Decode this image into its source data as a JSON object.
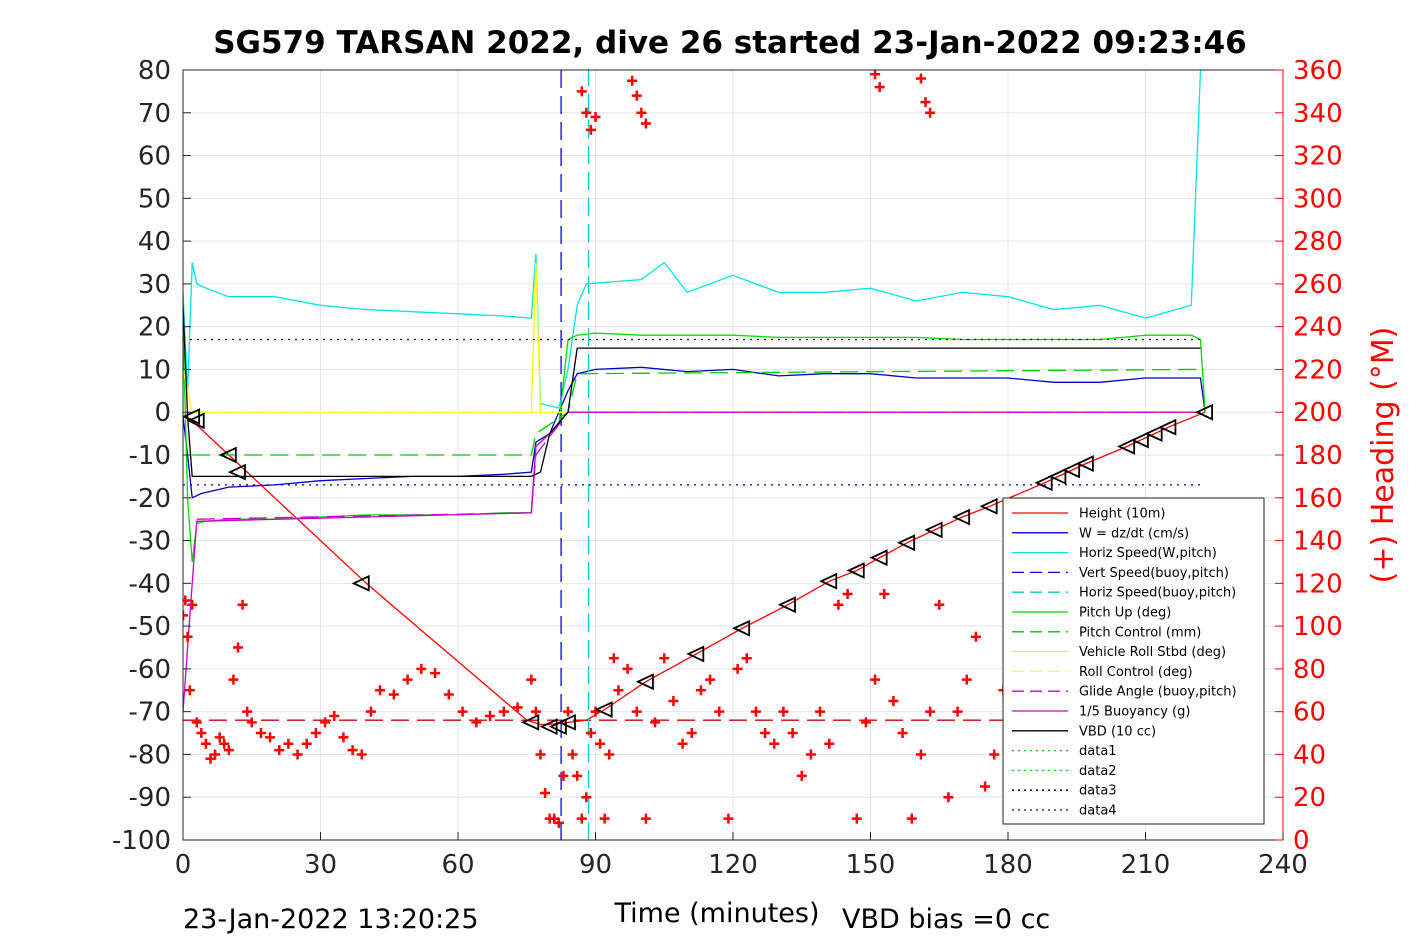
{
  "chart_data": {
    "type": "line",
    "title": "SG579 TARSAN 2022, dive 26 started 23-Jan-2022 09:23:46",
    "xlabel": "Time (minutes)",
    "ylabel_right": "(+) Heading (°M)",
    "xlim": [
      0,
      240
    ],
    "ylim_left": [
      -100,
      80
    ],
    "ylim_right": [
      0,
      360
    ],
    "x_ticks": [
      "0",
      "30",
      "60",
      "90",
      "120",
      "150",
      "180",
      "210",
      "240"
    ],
    "y_ticks_left": [
      "80",
      "70",
      "60",
      "50",
      "40",
      "30",
      "20",
      "10",
      "0",
      "-10",
      "-20",
      "-30",
      "-40",
      "-50",
      "-60",
      "-70",
      "-80",
      "-90",
      "-100"
    ],
    "y_ticks_right": [
      "360",
      "340",
      "320",
      "300",
      "280",
      "260",
      "240",
      "220",
      "200",
      "180",
      "160",
      "140",
      "120",
      "100",
      "80",
      "60",
      "40",
      "20",
      "0"
    ],
    "grid": true,
    "legend_position": "lower-right",
    "footer_left": "23-Jan-2022 13:20:25",
    "footer_right": "VBD bias =0 cc",
    "series": [
      {
        "name": "Height (10m)",
        "color": "#ff0000",
        "style": "solid",
        "axis": "left",
        "x": [
          0,
          2,
          10,
          40,
          75,
          78,
          80,
          84,
          88,
          92,
          101,
          112,
          122,
          132,
          141,
          147,
          152,
          158,
          164,
          170,
          176,
          188,
          191,
          194,
          197,
          206,
          209,
          212,
          215,
          223
        ],
        "y": [
          -1,
          -2,
          -10,
          -40,
          -72,
          -73,
          -73,
          -72.5,
          -72,
          -69.5,
          -63,
          -56.5,
          -50.5,
          -45,
          -39.5,
          -37,
          -34,
          -30.5,
          -27.5,
          -24.5,
          -22,
          -16.5,
          -15,
          -13.5,
          -12,
          -8,
          -6.5,
          -5,
          -3.5,
          0
        ]
      },
      {
        "name": "W = dz/dt (cm/s)",
        "color": "#0000cc",
        "style": "solid",
        "axis": "left",
        "x": [
          0,
          1,
          2,
          4,
          10,
          20,
          30,
          40,
          50,
          60,
          70,
          76,
          77,
          80,
          82,
          84,
          86,
          90,
          100,
          110,
          120,
          130,
          140,
          150,
          160,
          170,
          180,
          190,
          200,
          210,
          222,
          223
        ],
        "y": [
          -1,
          -10,
          -20,
          -19,
          -17.5,
          -17,
          -16,
          -15.5,
          -15,
          -15,
          -14.5,
          -14,
          -7,
          -5,
          0,
          5,
          9,
          10,
          10.5,
          9.5,
          10,
          8.5,
          9,
          9,
          8,
          8,
          8,
          7,
          7,
          8,
          8,
          0
        ]
      },
      {
        "name": "Horiz Speed(W,pitch)",
        "color": "#00e5e5",
        "style": "solid",
        "axis": "left",
        "x": [
          0,
          1,
          2,
          3,
          5,
          10,
          20,
          30,
          40,
          50,
          60,
          70,
          76,
          77,
          78,
          82,
          84,
          86,
          88,
          100,
          105,
          110,
          120,
          130,
          140,
          150,
          160,
          170,
          180,
          190,
          200,
          210,
          220,
          222,
          223
        ],
        "y": [
          28,
          5,
          35,
          30,
          29,
          27,
          27,
          25,
          24,
          23.5,
          23,
          22.5,
          22,
          37,
          2,
          1,
          10,
          25,
          30,
          31,
          35,
          28,
          32,
          28,
          28,
          29,
          26,
          28,
          27,
          24,
          25,
          22,
          25,
          80,
          80
        ]
      },
      {
        "name": "Vert Speed(buoy,pitch)",
        "color": "#0000ff",
        "style": "dashed",
        "axis": "left",
        "x": [
          82.5,
          82.5
        ],
        "y": [
          80,
          -100
        ]
      },
      {
        "name": "Horiz Speed(buoy,pitch)",
        "color": "#00cccc",
        "style": "dashed",
        "axis": "left",
        "x": [
          88.5,
          88.5
        ],
        "y": [
          -100,
          80
        ]
      },
      {
        "name": "Pitch Up (deg)",
        "color": "#00dd00",
        "style": "solid",
        "axis": "left",
        "x": [
          0,
          1,
          2,
          3,
          5,
          10,
          20,
          30,
          40,
          50,
          60,
          70,
          76,
          77,
          80,
          82,
          84,
          86,
          90,
          100,
          110,
          120,
          130,
          140,
          150,
          160,
          170,
          180,
          190,
          200,
          210,
          220,
          222,
          223
        ],
        "y": [
          20,
          -20,
          -35,
          -26,
          -25.5,
          -25,
          -25,
          -24.5,
          -24,
          -24,
          -24,
          -23.5,
          -23.5,
          -8,
          -5,
          -3,
          17,
          18,
          18.5,
          18,
          18,
          18,
          17.5,
          17.5,
          17.5,
          17.5,
          17,
          17,
          17,
          17,
          18,
          18,
          17,
          0
        ]
      },
      {
        "name": "Pitch Control (mm)",
        "color": "#00cc00",
        "style": "dashed",
        "axis": "left",
        "x": [
          2,
          76,
          77,
          84,
          86,
          222
        ],
        "y": [
          -10,
          -10,
          -5,
          0,
          9,
          10
        ]
      },
      {
        "name": "Vehicle Roll Stbd (deg)",
        "color": "#ffff00",
        "style": "solid",
        "axis": "left",
        "x": [
          0,
          2,
          10,
          20,
          30,
          40,
          50,
          60,
          70,
          76,
          77,
          78,
          84,
          90,
          100,
          110,
          120,
          130,
          140,
          150,
          160,
          170,
          180,
          190,
          200,
          210,
          222
        ],
        "y": [
          10,
          0,
          0,
          0,
          0,
          0,
          0,
          0,
          0,
          0,
          35,
          0,
          0,
          0,
          0,
          0,
          0,
          0,
          0,
          0,
          0,
          0,
          0,
          0,
          0,
          0,
          0
        ]
      },
      {
        "name": "Roll Control (deg)",
        "color": "#ffff33",
        "style": "dashed",
        "axis": "left",
        "x": [
          0,
          2,
          76,
          84,
          222
        ],
        "y": [
          0,
          0,
          0,
          0,
          0
        ]
      },
      {
        "name": "Glide Angle (buoy,pitch)",
        "color": "#cc00cc",
        "style": "dashed",
        "axis": "left",
        "x": [
          3,
          76,
          77,
          84,
          222
        ],
        "y": [
          -25,
          -23.5,
          -10,
          0,
          0
        ]
      },
      {
        "name": "1/5 Buoyancy (g)",
        "color": "#cc00cc",
        "style": "solid",
        "axis": "left",
        "x": [
          0,
          2,
          3,
          76,
          77,
          80,
          84,
          222
        ],
        "y": [
          -70,
          -40,
          -25.5,
          -23.5,
          -8,
          -5,
          0,
          0
        ]
      },
      {
        "name": "VBD (10 cc)",
        "color": "#000000",
        "style": "solid",
        "axis": "left",
        "x": [
          0,
          1,
          2,
          76,
          78,
          80,
          84,
          86,
          222
        ],
        "y": [
          25,
          -1,
          -15,
          -15,
          -14,
          -5,
          0,
          15,
          15
        ]
      },
      {
        "name": "data1",
        "color": "#00cc00",
        "style": "dotted",
        "axis": "left",
        "x": [],
        "y": []
      },
      {
        "name": "data2",
        "color": "#00cc00",
        "style": "dotted",
        "axis": "left",
        "x": [],
        "y": []
      },
      {
        "name": "data3",
        "color": "#000000",
        "style": "dotted",
        "axis": "left",
        "x": [],
        "y": []
      },
      {
        "name": "data4",
        "color": "#0000aa",
        "style": "dotted",
        "axis": "left",
        "x": [
          0,
          222
        ],
        "y": [
          17,
          17
        ]
      }
    ],
    "extra_lines": [
      {
        "color": "#0000aa",
        "style": "dotted",
        "axis": "left",
        "x": [
          0,
          222
        ],
        "y": [
          -17,
          -17
        ]
      },
      {
        "color": "#cc0000",
        "style": "dashed",
        "axis": "left",
        "x": [
          0,
          222
        ],
        "y": [
          -72,
          -72
        ]
      }
    ],
    "heading": {
      "color": "#ff0000",
      "marker": "+",
      "axis": "right",
      "x": [
        0,
        0.5,
        1,
        1.5,
        2,
        3,
        4,
        5,
        6,
        7,
        8,
        9,
        10,
        11,
        12,
        13,
        14,
        15,
        17,
        19,
        21,
        23,
        25,
        27,
        29,
        31,
        33,
        35,
        37,
        39,
        41,
        43,
        46,
        49,
        52,
        55,
        58,
        61,
        64,
        67,
        70,
        73,
        76,
        77,
        78,
        79,
        80,
        81,
        82,
        83,
        84,
        85,
        86,
        87,
        88,
        89,
        90,
        91,
        92,
        93,
        94,
        95,
        97,
        99,
        101,
        103,
        105,
        107,
        109,
        111,
        113,
        115,
        117,
        119,
        121,
        123,
        125,
        127,
        129,
        131,
        133,
        135,
        137,
        139,
        141,
        143,
        145,
        147,
        149,
        151,
        153,
        155,
        157,
        159,
        161,
        163,
        165,
        167,
        169,
        171,
        173,
        175,
        177,
        179,
        181
      ],
      "y": [
        105,
        112,
        95,
        70,
        110,
        55,
        50,
        45,
        38,
        40,
        48,
        45,
        42,
        75,
        90,
        110,
        60,
        55,
        50,
        48,
        42,
        45,
        40,
        45,
        50,
        55,
        58,
        48,
        42,
        40,
        60,
        70,
        68,
        75,
        80,
        78,
        68,
        60,
        55,
        58,
        60,
        62,
        75,
        60,
        40,
        22,
        10,
        10,
        8,
        30,
        60,
        40,
        30,
        10,
        20,
        50,
        60,
        45,
        10,
        40,
        85,
        70,
        80,
        60,
        10,
        55,
        85,
        65,
        45,
        50,
        70,
        75,
        60,
        10,
        80,
        85,
        60,
        50,
        45,
        60,
        50,
        30,
        40,
        60,
        45,
        110,
        115,
        10,
        55,
        75,
        115,
        65,
        50,
        10,
        40,
        60,
        110,
        20,
        60,
        75,
        95,
        25,
        40,
        70,
        65
      ],
      "x2": [
        87,
        88,
        89,
        90,
        98,
        99,
        100,
        101,
        151,
        152,
        161,
        162,
        163
      ],
      "y2": [
        350,
        340,
        332,
        338,
        355,
        348,
        340,
        335,
        358,
        352,
        356,
        345,
        340
      ]
    },
    "markers": {
      "color": "#000000",
      "marker": "triangle-left",
      "axis": "left",
      "x": [
        2,
        3,
        10,
        12,
        39,
        76,
        80,
        82,
        84,
        92,
        101,
        112,
        122,
        132,
        141,
        147,
        152,
        158,
        164,
        170,
        176,
        188,
        191,
        194,
        197,
        206,
        209,
        212,
        215,
        223
      ],
      "y": [
        -1,
        -2,
        -10,
        -14,
        -40,
        -72.5,
        -73.5,
        -73.5,
        -72.5,
        -69.5,
        -63,
        -56.5,
        -50.5,
        -45,
        -39.5,
        -37,
        -34,
        -30.5,
        -27.5,
        -24.5,
        -22,
        -16.5,
        -15,
        -13.5,
        -12,
        -8,
        -6.5,
        -5,
        -3.5,
        0
      ]
    }
  }
}
